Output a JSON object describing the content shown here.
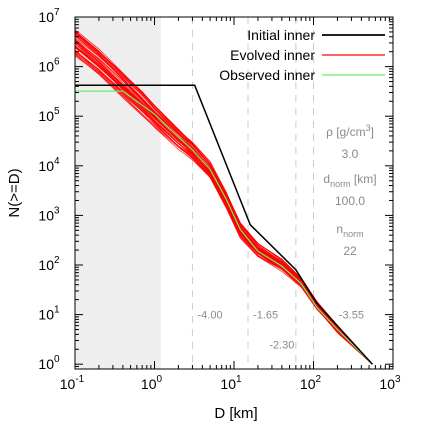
{
  "chart_data": {
    "type": "line",
    "xlabel": "D [km]",
    "ylabel": "N(>=D)",
    "xscale": "log",
    "yscale": "log",
    "xlim": [
      0.1,
      1000
    ],
    "ylim": [
      0.8,
      10000000
    ],
    "x_ticks": [
      0.1,
      1,
      10,
      100,
      1000
    ],
    "x_tick_labels": [
      "10",
      "10",
      "10",
      "10",
      "10"
    ],
    "x_tick_exponents": [
      "-1",
      "0",
      "1",
      "2",
      "3"
    ],
    "y_ticks": [
      1,
      10,
      100,
      1000,
      10000,
      100000,
      1000000,
      10000000
    ],
    "y_tick_labels": [
      "10",
      "10",
      "10",
      "10",
      "10",
      "10",
      "10",
      "10"
    ],
    "y_tick_exponents": [
      "0",
      "1",
      "2",
      "3",
      "4",
      "5",
      "6",
      "7"
    ],
    "shaded_region_x": [
      0.1,
      1.2
    ],
    "dashed_lines_x": [
      3,
      15,
      60,
      100
    ],
    "legend_placement": "top-right",
    "series": [
      {
        "name": "Initial inner",
        "color": "#000000",
        "x": [
          0.1,
          3.2,
          16,
          60,
          110,
          550
        ],
        "y": [
          420000,
          420000,
          650,
          80,
          17,
          1
        ]
      },
      {
        "name": "Evolved inner",
        "color": "#ff0000",
        "x": [
          0.1,
          0.2,
          0.4,
          0.7,
          1.0,
          2.0,
          3.0,
          5.0,
          8.0,
          12,
          20,
          40,
          70,
          110,
          200,
          550
        ],
        "y": [
          3000000,
          1200000,
          420000,
          180000,
          100000,
          35000,
          20000,
          8000,
          2000,
          500,
          200,
          100,
          45,
          15,
          5,
          1
        ]
      },
      {
        "name": "Observed inner",
        "color": "#66ee66",
        "x": [
          0.1,
          0.4,
          1.0,
          2.0,
          3.0,
          5.0,
          8.0,
          12,
          20,
          40,
          70,
          110,
          200,
          550
        ],
        "y": [
          320000,
          320000,
          110000,
          38000,
          21000,
          8500,
          2100,
          520,
          190,
          95,
          42,
          14,
          5,
          1
        ]
      }
    ],
    "parameters": [
      {
        "label": "ρ [g/cm",
        "sup": "3",
        "close": "]",
        "value": "3.0"
      },
      {
        "label": "d",
        "sub": "norm",
        "unit": " [km]",
        "value": "100.0"
      },
      {
        "label": "n",
        "sub": "norm",
        "unit": "",
        "value": "22"
      }
    ],
    "slope_labels": [
      {
        "text": "-4.00",
        "x": 5.0,
        "y": 10
      },
      {
        "text": "-1.65",
        "x": 25,
        "y": 10
      },
      {
        "text": "-2.30",
        "x": 40,
        "y": 2.5
      },
      {
        "text": "-3.55",
        "x": 300,
        "y": 10
      }
    ]
  }
}
